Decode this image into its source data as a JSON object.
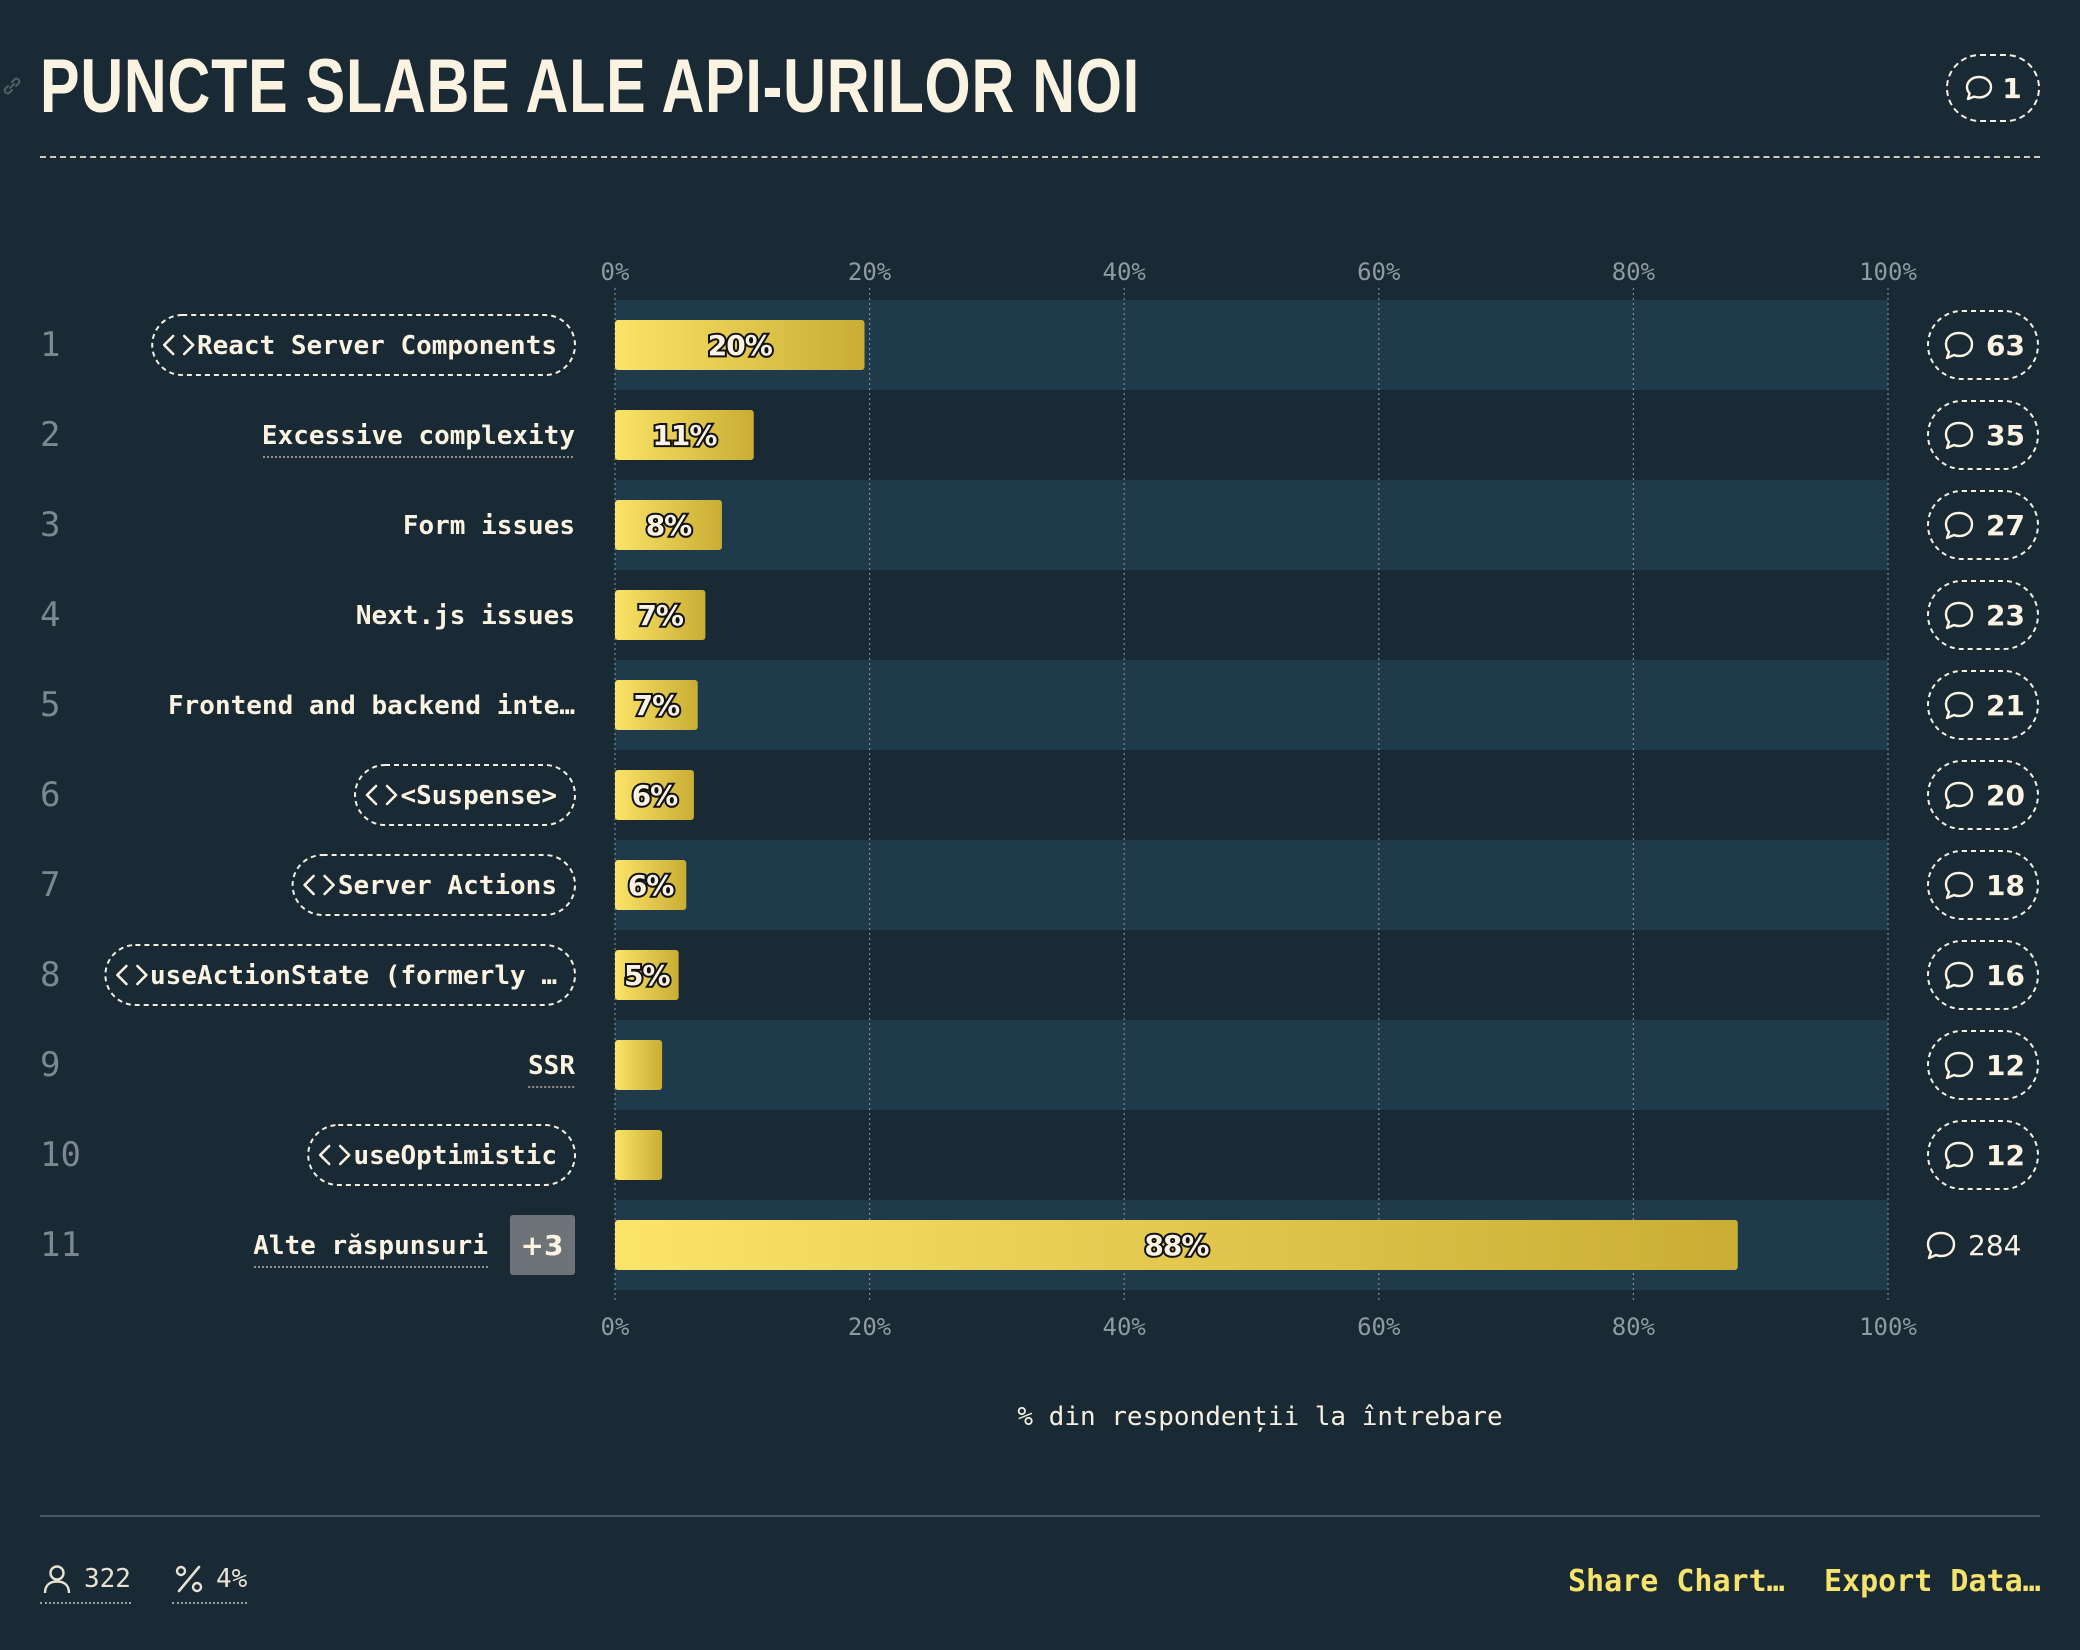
{
  "header": {
    "title": "PUNCTE SLABE ALE API-URILOR NOI",
    "comment_count": "1"
  },
  "chart_data": {
    "type": "bar",
    "orientation": "horizontal",
    "title": "PUNCTE SLABE ALE API-URILOR NOI",
    "xlabel": "% din respondenții la întrebare",
    "xlim": [
      0,
      100
    ],
    "ticks": [
      "0%",
      "20%",
      "40%",
      "60%",
      "80%",
      "100%"
    ],
    "grid": true,
    "categories": [
      {
        "rank": "1",
        "label": "React Server Components",
        "style": "code-pill",
        "value": 19.6,
        "value_label": "20%",
        "comments": "63"
      },
      {
        "rank": "2",
        "label": "Excessive complexity",
        "style": "underlined",
        "value": 10.9,
        "value_label": "11%",
        "comments": "35"
      },
      {
        "rank": "3",
        "label": "Form issues",
        "style": "plain",
        "value": 8.4,
        "value_label": "8%",
        "comments": "27"
      },
      {
        "rank": "4",
        "label": "Next.js issues",
        "style": "plain",
        "value": 7.1,
        "value_label": "7%",
        "comments": "23"
      },
      {
        "rank": "5",
        "label": "Frontend and backend inte…",
        "style": "plain",
        "value": 6.5,
        "value_label": "7%",
        "comments": "21"
      },
      {
        "rank": "6",
        "label": "<Suspense>",
        "style": "code-pill",
        "value": 6.2,
        "value_label": "6%",
        "comments": "20"
      },
      {
        "rank": "7",
        "label": "Server Actions",
        "style": "code-pill",
        "value": 5.6,
        "value_label": "6%",
        "comments": "18"
      },
      {
        "rank": "8",
        "label": "useActionState (formerly …",
        "style": "code-pill",
        "value": 5.0,
        "value_label": "5%",
        "comments": "16"
      },
      {
        "rank": "9",
        "label": "SSR",
        "style": "underlined",
        "value": 3.7,
        "value_label": "",
        "comments": "12"
      },
      {
        "rank": "10",
        "label": "useOptimistic",
        "style": "code-pill",
        "value": 3.7,
        "value_label": "",
        "comments": "12"
      },
      {
        "rank": "11",
        "label": "Alte răspunsuri",
        "style": "underlined",
        "badge": "+3",
        "value": 88.2,
        "value_label": "88%",
        "comments": "284",
        "comments_style": "plain"
      }
    ],
    "colors": {
      "background": "#192a35",
      "band": "#1f3a4a",
      "bar_start": "#fbe468",
      "bar_end": "#c9ad34",
      "text": "#f5efe0"
    }
  },
  "footer": {
    "respondents": "322",
    "percentage": "4%",
    "share_label": "Share Chart…",
    "export_label": "Export Data…"
  }
}
